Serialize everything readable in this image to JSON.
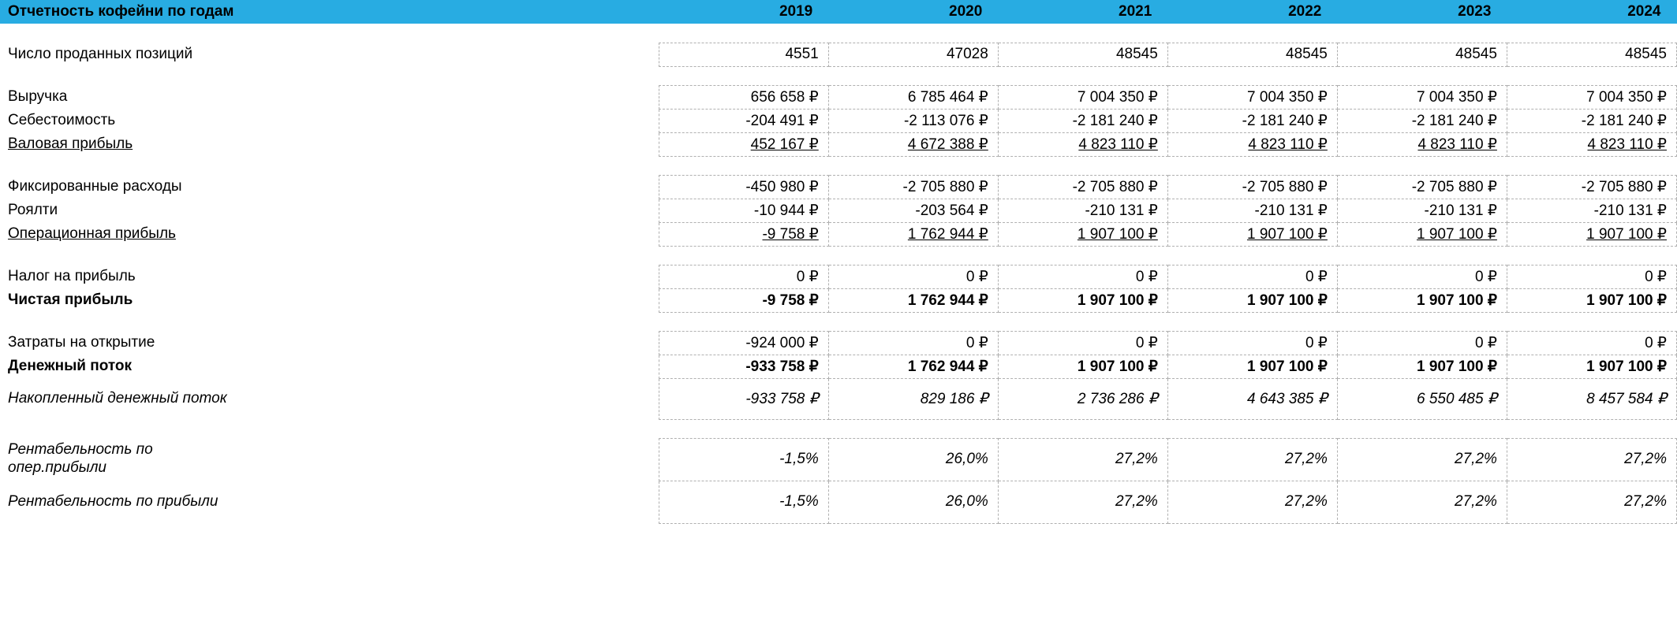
{
  "header": {
    "title": "Отчетность кофейни по годам",
    "years": [
      "2019",
      "2020",
      "2021",
      "2022",
      "2023",
      "2024"
    ]
  },
  "colors": {
    "header_bg": "#28ace2",
    "cell_border": "#b0b0b0",
    "text": "#000000",
    "background": "#ffffff"
  },
  "rows": [
    {
      "key": "units_sold",
      "label": "Число проданных позиций",
      "values": [
        "4551",
        "47028",
        "48545",
        "48545",
        "48545",
        "48545"
      ]
    },
    {
      "key": "revenue",
      "label": "Выручка",
      "values": [
        "656 658 ₽",
        "6 785 464 ₽",
        "7 004 350 ₽",
        "7 004 350 ₽",
        "7 004 350 ₽",
        "7 004 350 ₽"
      ]
    },
    {
      "key": "cogs",
      "label": "Себестоимость",
      "values": [
        "-204 491 ₽",
        "-2 113 076 ₽",
        "-2 181 240 ₽",
        "-2 181 240 ₽",
        "-2 181 240 ₽",
        "-2 181 240 ₽"
      ]
    },
    {
      "key": "gross_profit",
      "label": "Валовая прибыль",
      "values": [
        "452 167 ₽",
        "4 672 388 ₽",
        "4 823 110 ₽",
        "4 823 110 ₽",
        "4 823 110 ₽",
        "4 823 110 ₽"
      ]
    },
    {
      "key": "fixed_costs",
      "label": "Фиксированные расходы",
      "values": [
        "-450 980 ₽",
        "-2 705 880 ₽",
        "-2 705 880 ₽",
        "-2 705 880 ₽",
        "-2 705 880 ₽",
        "-2 705 880 ₽"
      ]
    },
    {
      "key": "royalty",
      "label": "Роялти",
      "values": [
        "-10 944 ₽",
        "-203 564 ₽",
        "-210 131 ₽",
        "-210 131 ₽",
        "-210 131 ₽",
        "-210 131 ₽"
      ]
    },
    {
      "key": "operating_profit",
      "label": "Операционная прибыль",
      "values": [
        "-9 758 ₽",
        "1 762 944 ₽",
        "1 907 100 ₽",
        "1 907 100 ₽",
        "1 907 100 ₽",
        "1 907 100 ₽"
      ]
    },
    {
      "key": "income_tax",
      "label": "Налог на прибыль",
      "values": [
        "0 ₽",
        "0 ₽",
        "0 ₽",
        "0 ₽",
        "0 ₽",
        "0 ₽"
      ]
    },
    {
      "key": "net_profit",
      "label": "Чистая прибыль",
      "values": [
        "-9 758 ₽",
        "1 762 944 ₽",
        "1 907 100 ₽",
        "1 907 100 ₽",
        "1 907 100 ₽",
        "1 907 100 ₽"
      ]
    },
    {
      "key": "opening_costs",
      "label": "Затраты на открытие",
      "values": [
        "-924 000 ₽",
        "0 ₽",
        "0 ₽",
        "0 ₽",
        "0 ₽",
        "0 ₽"
      ]
    },
    {
      "key": "cash_flow",
      "label": "Денежный поток",
      "values": [
        "-933 758 ₽",
        "1 762 944 ₽",
        "1 907 100 ₽",
        "1 907 100 ₽",
        "1 907 100 ₽",
        "1 907 100 ₽"
      ]
    },
    {
      "key": "cumulative_cash_flow",
      "label": "Накопленный денежный поток",
      "values": [
        "-933 758 ₽",
        "829 186 ₽",
        "2 736 286 ₽",
        "4 643 385 ₽",
        "6 550 485 ₽",
        "8 457 584 ₽"
      ]
    },
    {
      "key": "op_margin",
      "label": "Рентабельность по опер.прибыли",
      "values": [
        "-1,5%",
        "26,0%",
        "27,2%",
        "27,2%",
        "27,2%",
        "27,2%"
      ]
    },
    {
      "key": "net_margin",
      "label": "Рентабельность по прибыли",
      "values": [
        "-1,5%",
        "26,0%",
        "27,2%",
        "27,2%",
        "27,2%",
        "27,2%"
      ]
    }
  ]
}
